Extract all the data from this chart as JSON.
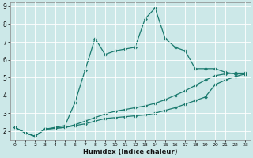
{
  "xlabel": "Humidex (Indice chaleur)",
  "background_color": "#cce8e8",
  "grid_color": "#ffffff",
  "line_color": "#1a7a6e",
  "xlim": [
    -0.5,
    23.5
  ],
  "ylim": [
    1.5,
    9.2
  ],
  "yticks": [
    2,
    3,
    4,
    5,
    6,
    7,
    8,
    9
  ],
  "xticks": [
    0,
    1,
    2,
    3,
    4,
    5,
    6,
    7,
    8,
    9,
    10,
    11,
    12,
    13,
    14,
    15,
    16,
    17,
    18,
    19,
    20,
    21,
    22,
    23
  ],
  "series1_x": [
    0,
    1,
    2,
    3,
    4,
    5,
    6,
    7,
    8,
    9,
    10,
    11,
    12,
    13,
    14,
    15,
    16,
    17,
    18,
    19,
    20,
    21,
    22,
    23
  ],
  "series1_y": [
    2.2,
    1.9,
    1.7,
    2.1,
    2.15,
    2.2,
    2.3,
    2.4,
    2.55,
    2.7,
    2.75,
    2.8,
    2.85,
    2.9,
    3.0,
    3.15,
    3.3,
    3.5,
    3.7,
    3.9,
    4.6,
    4.85,
    5.05,
    5.2
  ],
  "series2_x": [
    0,
    1,
    2,
    3,
    4,
    5,
    6,
    7,
    8,
    9,
    10,
    11,
    12,
    13,
    14,
    15,
    16,
    17,
    18,
    19,
    20,
    21,
    22,
    23
  ],
  "series2_y": [
    2.2,
    1.9,
    1.7,
    2.1,
    2.15,
    2.2,
    2.35,
    2.55,
    2.75,
    2.95,
    3.1,
    3.2,
    3.3,
    3.4,
    3.55,
    3.75,
    4.0,
    4.25,
    4.55,
    4.85,
    5.1,
    5.2,
    5.25,
    5.25
  ],
  "series3_x": [
    0,
    1,
    2,
    3,
    4,
    5,
    6,
    7,
    8,
    9,
    10,
    11,
    12,
    13,
    14,
    15,
    16,
    17,
    18,
    19,
    20,
    21,
    22,
    23
  ],
  "series3_y": [
    2.2,
    1.9,
    1.7,
    2.1,
    2.2,
    2.3,
    3.6,
    5.4,
    7.2,
    6.3,
    6.5,
    6.6,
    6.7,
    8.3,
    8.9,
    7.2,
    6.7,
    6.5,
    5.5,
    5.5,
    5.5,
    5.3,
    5.2,
    5.2
  ],
  "markersize": 2.5,
  "linewidth": 0.9
}
